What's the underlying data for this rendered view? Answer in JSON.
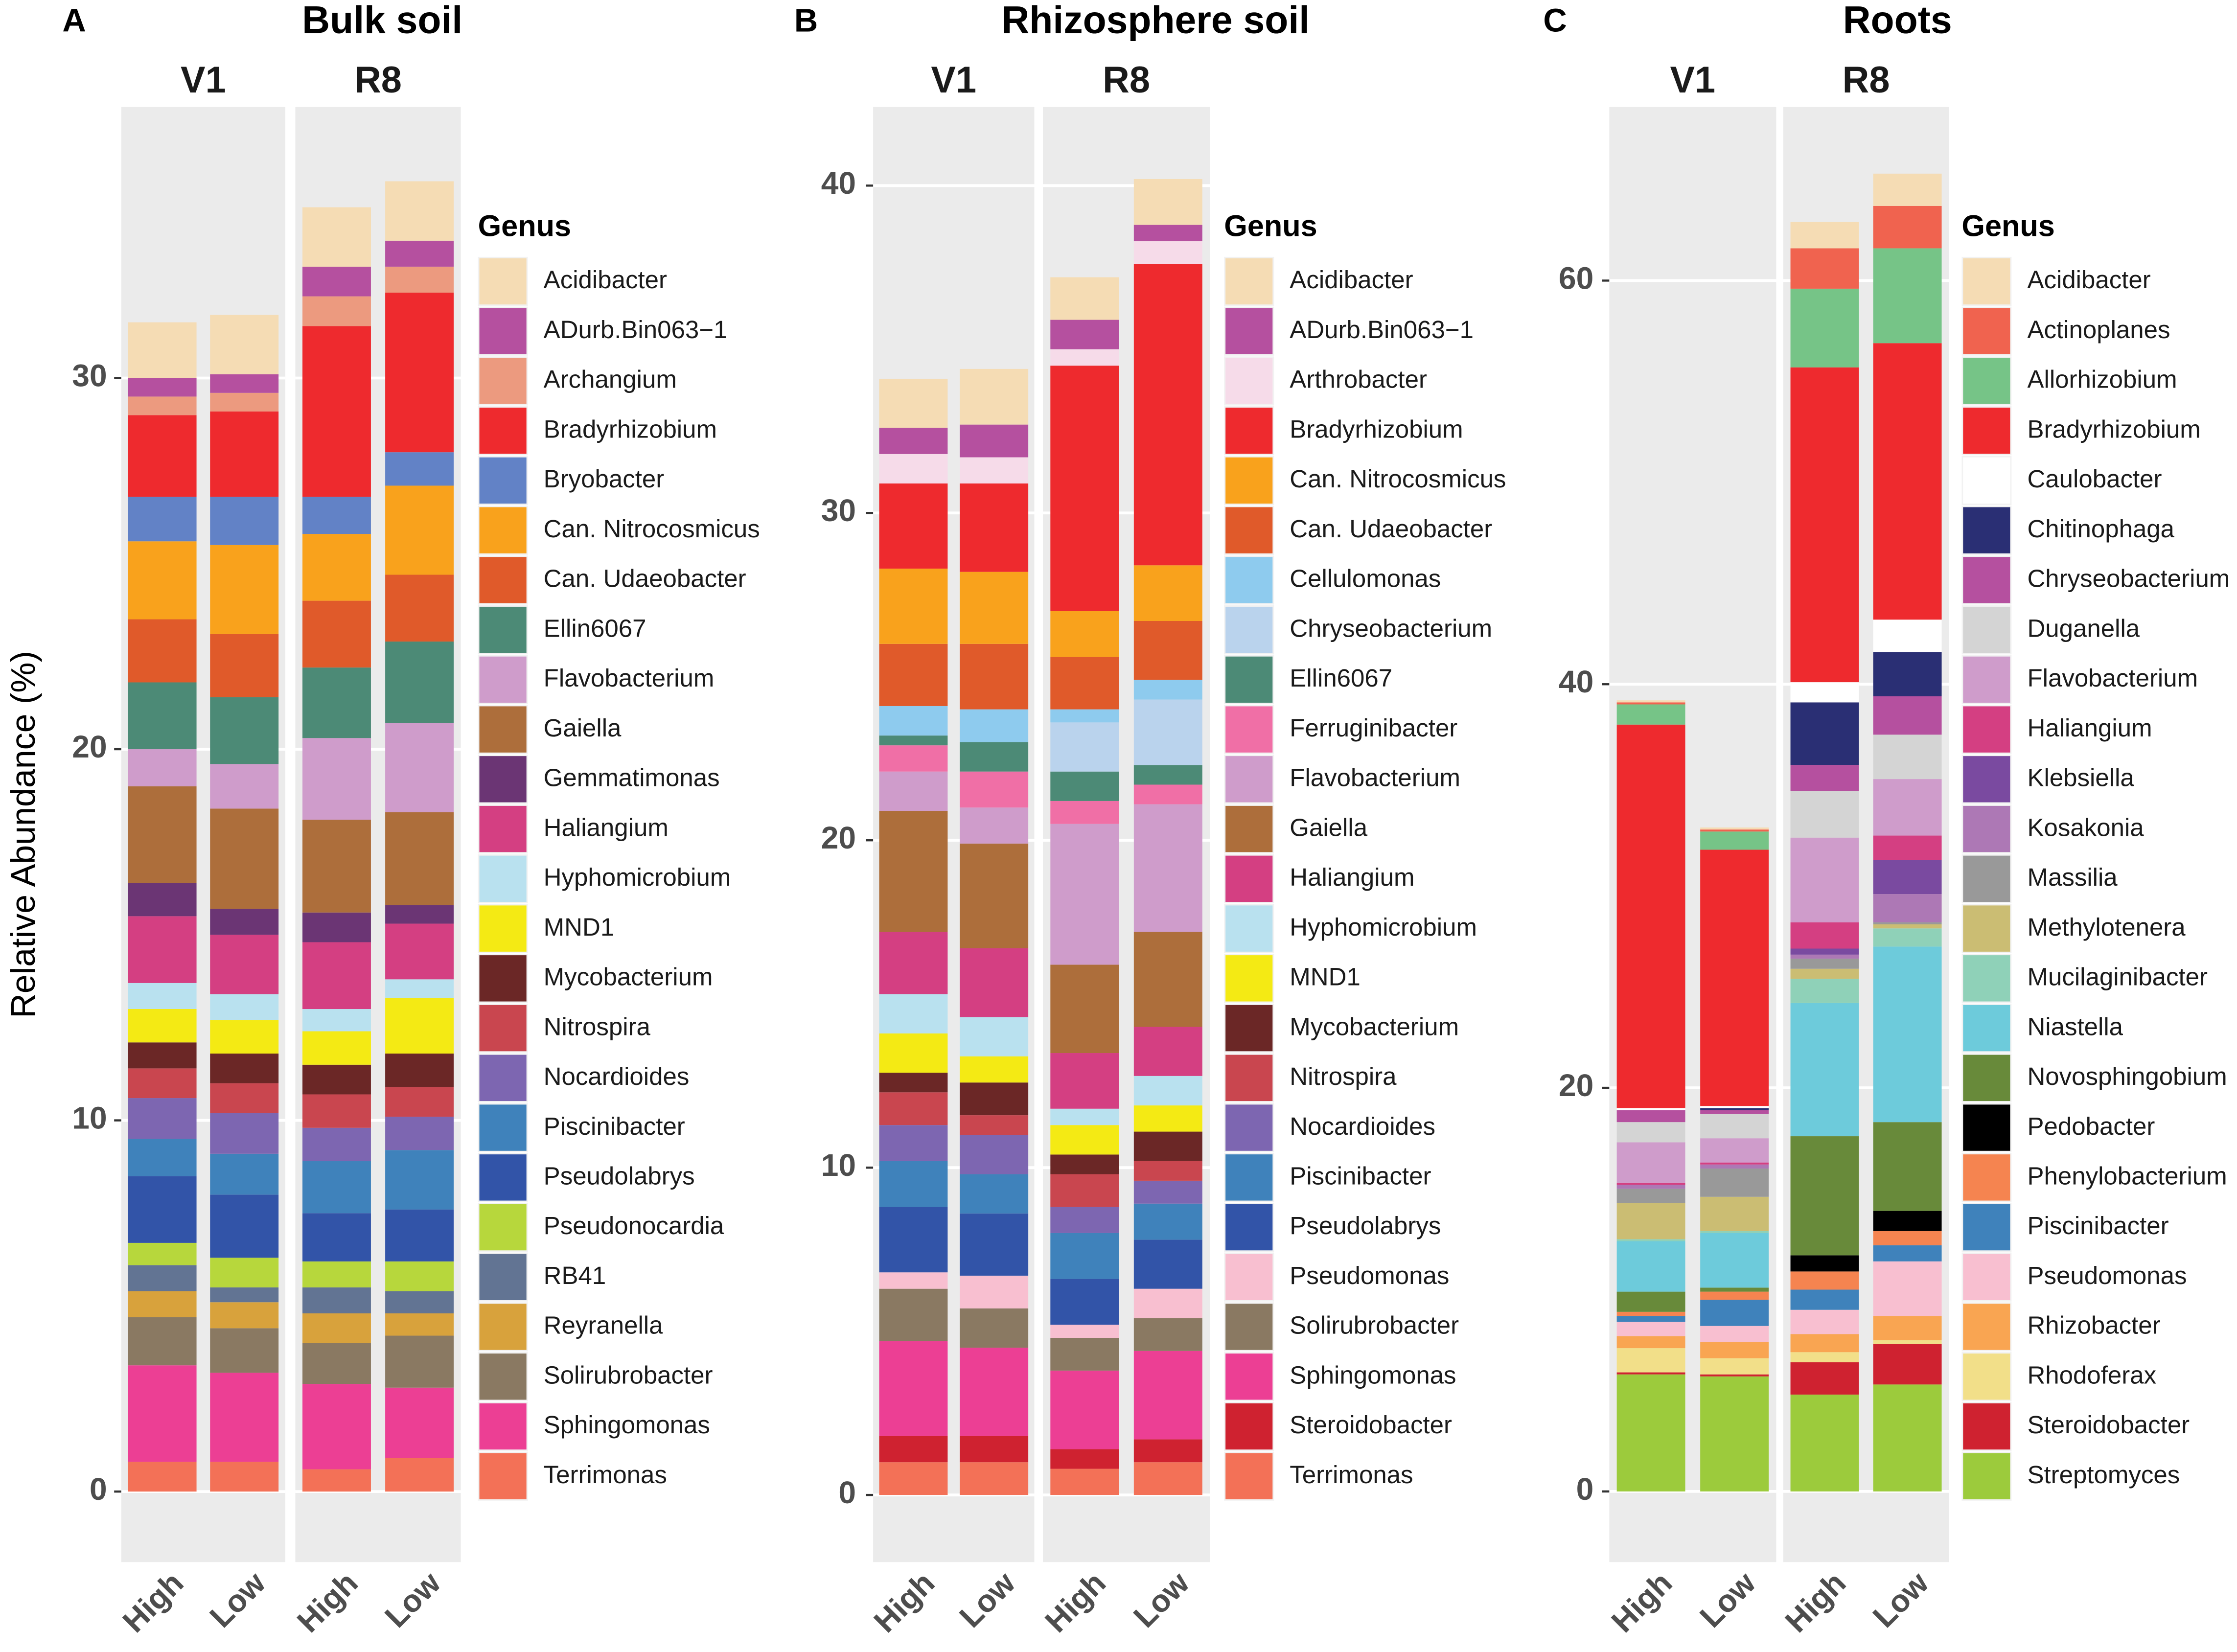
{
  "chart_data": [
    {
      "type": "bar",
      "stacked": true,
      "panel_label": "A",
      "title": "Bulk soil",
      "y_label": "Relative Abundance (%)",
      "facets": [
        "V1",
        "R8"
      ],
      "categories": [
        "High",
        "Low",
        "High",
        "Low"
      ],
      "legend_title": "Genus",
      "ylim": [
        -1.9,
        37.3
      ],
      "yticks": [
        0,
        10,
        20,
        30
      ],
      "grid": true,
      "series": [
        {
          "name": "Acidibacter",
          "color": "#f5dcb4",
          "values": [
            1.5,
            1.6,
            1.6,
            1.6
          ]
        },
        {
          "name": "ADurb.Bin063−1",
          "color": "#b5509f",
          "values": [
            0.5,
            0.5,
            0.8,
            0.7
          ]
        },
        {
          "name": "Archangium",
          "color": "#ec9a7f",
          "values": [
            0.5,
            0.5,
            0.8,
            0.7
          ]
        },
        {
          "name": "Bradyrhizobium",
          "color": "#ee2a2e",
          "values": [
            2.2,
            2.3,
            4.6,
            4.3
          ]
        },
        {
          "name": "Bryobacter",
          "color": "#6282c6",
          "values": [
            1.2,
            1.3,
            1.0,
            0.9
          ]
        },
        {
          "name": "Can. Nitrocosmicus",
          "color": "#f9a21c",
          "values": [
            2.1,
            2.4,
            1.8,
            2.4
          ]
        },
        {
          "name": "Can. Udaeobacter",
          "color": "#e05a2a",
          "values": [
            1.7,
            1.7,
            1.8,
            1.8
          ]
        },
        {
          "name": "Ellin6067",
          "color": "#4c8a76",
          "values": [
            1.8,
            1.8,
            1.9,
            2.2
          ]
        },
        {
          "name": "Flavobacterium",
          "color": "#cf9ccb",
          "values": [
            1.0,
            1.2,
            2.2,
            2.4
          ]
        },
        {
          "name": "Gaiella",
          "color": "#ad6e3b",
          "values": [
            2.6,
            2.7,
            2.5,
            2.5
          ]
        },
        {
          "name": "Gemmatimonas",
          "color": "#6b3574",
          "values": [
            0.9,
            0.7,
            0.8,
            0.5
          ]
        },
        {
          "name": "Haliangium",
          "color": "#d43f82",
          "values": [
            1.8,
            1.6,
            1.8,
            1.5
          ]
        },
        {
          "name": "Hyphomicrobium",
          "color": "#b9e1ef",
          "values": [
            0.7,
            0.7,
            0.6,
            0.5
          ]
        },
        {
          "name": "MND1",
          "color": "#f4ea14",
          "values": [
            0.9,
            0.9,
            0.9,
            1.5
          ]
        },
        {
          "name": "Mycobacterium",
          "color": "#6b2726",
          "values": [
            0.7,
            0.8,
            0.8,
            0.9
          ]
        },
        {
          "name": "Nitrospira",
          "color": "#c9464f",
          "values": [
            0.8,
            0.8,
            0.9,
            0.8
          ]
        },
        {
          "name": "Nocardioides",
          "color": "#7d66b1",
          "values": [
            1.1,
            1.1,
            0.9,
            0.9
          ]
        },
        {
          "name": "Piscinibacter",
          "color": "#3f82bb",
          "values": [
            1.0,
            1.1,
            1.4,
            1.6
          ]
        },
        {
          "name": "Pseudolabrys",
          "color": "#3254a8",
          "values": [
            1.8,
            1.7,
            1.3,
            1.4
          ]
        },
        {
          "name": "Pseudonocardia",
          "color": "#b7d73c",
          "values": [
            0.6,
            0.8,
            0.7,
            0.8
          ]
        },
        {
          "name": "RB41",
          "color": "#627493",
          "values": [
            0.7,
            0.4,
            0.7,
            0.6
          ]
        },
        {
          "name": "Reyranella",
          "color": "#d8a23c",
          "values": [
            0.7,
            0.7,
            0.8,
            0.6
          ]
        },
        {
          "name": "Solirubrobacter",
          "color": "#8a7962",
          "values": [
            1.3,
            1.2,
            1.1,
            1.4
          ]
        },
        {
          "name": "Sphingomonas",
          "color": "#ec3f94",
          "values": [
            2.6,
            2.4,
            2.3,
            1.9
          ]
        },
        {
          "name": "Terrimonas",
          "color": "#f37157",
          "values": [
            0.8,
            0.8,
            0.6,
            0.9
          ]
        }
      ]
    },
    {
      "type": "bar",
      "stacked": true,
      "panel_label": "B",
      "title": "Rhizosphere soil",
      "facets": [
        "V1",
        "R8"
      ],
      "categories": [
        "High",
        "Low",
        "High",
        "Low"
      ],
      "legend_title": "Genus",
      "ylim": [
        -2.05,
        42.4
      ],
      "yticks": [
        0,
        10,
        20,
        30,
        40
      ],
      "grid": true,
      "series": [
        {
          "name": "Acidibacter",
          "color": "#f5dcb4",
          "values": [
            1.5,
            1.7,
            1.3,
            1.4
          ]
        },
        {
          "name": "ADurb.Bin063−1",
          "color": "#b5509f",
          "values": [
            0.8,
            1.0,
            0.9,
            0.5
          ]
        },
        {
          "name": "Arthrobacter",
          "color": "#f6dbe9",
          "values": [
            0.9,
            0.8,
            0.5,
            0.7
          ]
        },
        {
          "name": "Bradyrhizobium",
          "color": "#ee2a2e",
          "values": [
            2.6,
            2.7,
            7.5,
            9.2
          ]
        },
        {
          "name": "Can. Nitrocosmicus",
          "color": "#f9a21c",
          "values": [
            2.3,
            2.2,
            1.4,
            1.7
          ]
        },
        {
          "name": "Can. Udaeobacter",
          "color": "#e05a2a",
          "values": [
            1.9,
            2.0,
            1.6,
            1.8
          ]
        },
        {
          "name": "Cellulomonas",
          "color": "#8ecbee",
          "values": [
            0.9,
            1.0,
            0.4,
            0.6
          ]
        },
        {
          "name": "Chryseobacterium",
          "color": "#bad3ed",
          "values": [
            0,
            0,
            1.5,
            2.0
          ]
        },
        {
          "name": "Ellin6067",
          "color": "#4c8a76",
          "values": [
            0.3,
            0.9,
            0.9,
            0.6
          ]
        },
        {
          "name": "Ferruginibacter",
          "color": "#f06fa6",
          "values": [
            0.8,
            1.1,
            0.7,
            0.6
          ]
        },
        {
          "name": "Flavobacterium",
          "color": "#cf9ccb",
          "values": [
            1.2,
            1.1,
            4.3,
            3.9
          ]
        },
        {
          "name": "Gaiella",
          "color": "#ad6e3b",
          "values": [
            3.7,
            3.2,
            2.7,
            2.9
          ]
        },
        {
          "name": "Haliangium",
          "color": "#d43f82",
          "values": [
            1.9,
            2.1,
            1.7,
            1.5
          ]
        },
        {
          "name": "Hyphomicrobium",
          "color": "#b9e1ef",
          "values": [
            1.2,
            1.2,
            0.5,
            0.9
          ]
        },
        {
          "name": "MND1",
          "color": "#f4ea14",
          "values": [
            1.2,
            0.8,
            0.9,
            0.8
          ]
        },
        {
          "name": "Mycobacterium",
          "color": "#6b2726",
          "values": [
            0.6,
            1.0,
            0.6,
            0.9
          ]
        },
        {
          "name": "Nitrospira",
          "color": "#c9464f",
          "values": [
            1.0,
            0.6,
            1.0,
            0.6
          ]
        },
        {
          "name": "Nocardioides",
          "color": "#7d66b1",
          "values": [
            1.1,
            1.2,
            0.8,
            0.7
          ]
        },
        {
          "name": "Piscinibacter",
          "color": "#3f82bb",
          "values": [
            1.4,
            1.2,
            1.4,
            1.1
          ]
        },
        {
          "name": "Pseudolabrys",
          "color": "#3254a8",
          "values": [
            2.0,
            1.9,
            1.4,
            1.5
          ]
        },
        {
          "name": "Pseudomonas",
          "color": "#f8bfd0",
          "values": [
            0.5,
            1.0,
            0.4,
            0.9
          ]
        },
        {
          "name": "Solirubrobacter",
          "color": "#8a7962",
          "values": [
            1.6,
            1.2,
            1.0,
            1.0
          ]
        },
        {
          "name": "Sphingomonas",
          "color": "#ec3f94",
          "values": [
            2.9,
            2.7,
            2.4,
            2.7
          ]
        },
        {
          "name": "Steroidobacter",
          "color": "#cf2230",
          "values": [
            0.8,
            0.8,
            0.6,
            0.7
          ]
        },
        {
          "name": "Terrimonas",
          "color": "#f37157",
          "values": [
            1.0,
            1.0,
            0.8,
            1.0
          ]
        }
      ]
    },
    {
      "type": "bar",
      "stacked": true,
      "panel_label": "C",
      "title": "Roots",
      "facets": [
        "V1",
        "R8"
      ],
      "categories": [
        "High",
        "Low",
        "High",
        "Low"
      ],
      "legend_title": "Genus",
      "ylim": [
        -3.5,
        68.6
      ],
      "yticks": [
        0,
        20,
        40,
        60
      ],
      "grid": true,
      "series": [
        {
          "name": "Acidibacter",
          "color": "#f5dcb4",
          "values": [
            0.1,
            0.1,
            1.3,
            1.6
          ]
        },
        {
          "name": "Actinoplanes",
          "color": "#f0634f",
          "values": [
            0.1,
            0.1,
            2.0,
            2.1
          ]
        },
        {
          "name": "Allorhizobium",
          "color": "#76c487",
          "values": [
            1.0,
            0.9,
            3.9,
            4.7
          ]
        },
        {
          "name": "Bradyrhizobium",
          "color": "#ee2a2e",
          "values": [
            19.0,
            12.7,
            15.6,
            13.7
          ]
        },
        {
          "name": "Caulobacter",
          "color": "#ffffff",
          "values": [
            0.1,
            0.1,
            1.0,
            1.6
          ]
        },
        {
          "name": "Chitinophaga",
          "color": "#2a2f74",
          "values": [
            0,
            0.1,
            3.1,
            2.2
          ]
        },
        {
          "name": "Chryseobacterium",
          "color": "#b5509f",
          "values": [
            0.6,
            0.2,
            1.3,
            1.9
          ]
        },
        {
          "name": "Duganella",
          "color": "#d4d4d4",
          "values": [
            1.0,
            1.2,
            2.3,
            2.2
          ]
        },
        {
          "name": "Flavobacterium",
          "color": "#cf9ccb",
          "values": [
            2.0,
            1.2,
            4.2,
            2.8
          ]
        },
        {
          "name": "Haliangium",
          "color": "#d43f82",
          "values": [
            0.1,
            0.1,
            1.3,
            1.2
          ]
        },
        {
          "name": "Klebsiella",
          "color": "#7a4aa0",
          "values": [
            0,
            0,
            0.3,
            1.7
          ]
        },
        {
          "name": "Kosakonia",
          "color": "#ad78b5",
          "values": [
            0.2,
            0.2,
            0.2,
            1.4
          ]
        },
        {
          "name": "Massilia",
          "color": "#999999",
          "values": [
            0.7,
            1.4,
            0.5,
            0.1
          ]
        },
        {
          "name": "Methylotenera",
          "color": "#cbbd73",
          "values": [
            1.8,
            1.7,
            0.5,
            0.2
          ]
        },
        {
          "name": "Mucilaginibacter",
          "color": "#8fd1b8",
          "values": [
            0.1,
            0.1,
            1.2,
            0.9
          ]
        },
        {
          "name": "Niastella",
          "color": "#6dcbdb",
          "values": [
            2.5,
            2.7,
            6.6,
            8.7
          ]
        },
        {
          "name": "Novosphingobium",
          "color": "#688a3a",
          "values": [
            1.0,
            0.2,
            5.9,
            4.4
          ]
        },
        {
          "name": "Pedobacter",
          "color": "#000000",
          "values": [
            0,
            0,
            0.8,
            1.0
          ]
        },
        {
          "name": "Phenylobacterium",
          "color": "#f58450",
          "values": [
            0.2,
            0.4,
            0.9,
            0.7
          ]
        },
        {
          "name": "Piscinibacter",
          "color": "#3f82bb",
          "values": [
            0.3,
            1.3,
            1.0,
            0.8
          ]
        },
        {
          "name": "Pseudomonas",
          "color": "#f8bfd0",
          "values": [
            0.7,
            0.8,
            1.2,
            2.7
          ]
        },
        {
          "name": "Rhizobacter",
          "color": "#f9a552",
          "values": [
            0.6,
            0.8,
            0.9,
            1.2
          ]
        },
        {
          "name": "Rhodoferax",
          "color": "#f2df89",
          "values": [
            1.2,
            0.8,
            0.5,
            0.2
          ]
        },
        {
          "name": "Steroidobacter",
          "color": "#cf2230",
          "values": [
            0.1,
            0.1,
            1.6,
            2.0
          ]
        },
        {
          "name": "Streptomyces",
          "color": "#9ccb3c",
          "values": [
            5.8,
            5.7,
            4.8,
            5.3
          ]
        }
      ]
    }
  ]
}
